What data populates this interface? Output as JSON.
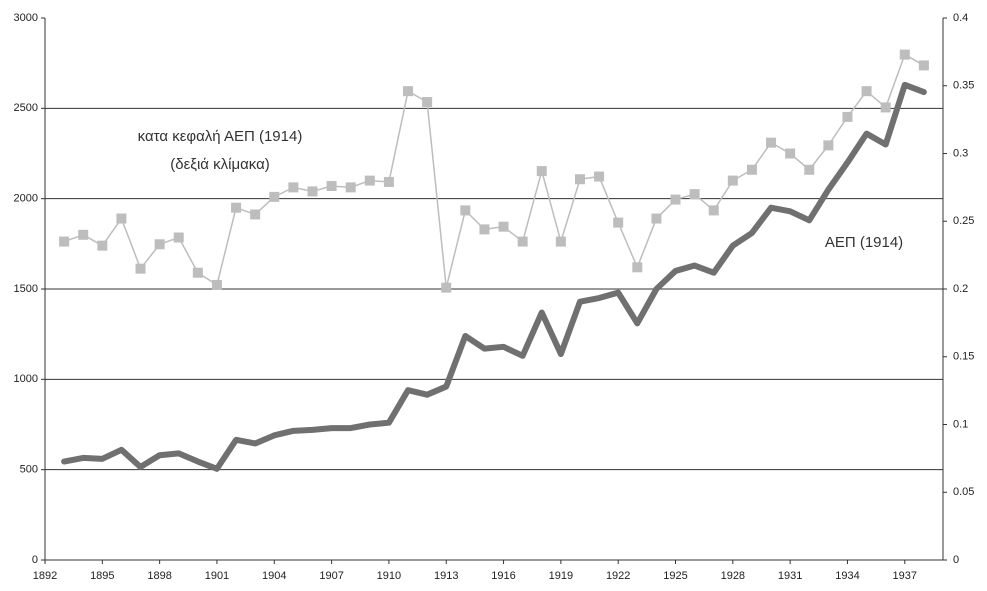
{
  "chart_data": {
    "type": "line",
    "x": [
      1893,
      1894,
      1895,
      1896,
      1897,
      1898,
      1899,
      1900,
      1901,
      1902,
      1903,
      1904,
      1905,
      1906,
      1907,
      1908,
      1909,
      1910,
      1911,
      1912,
      1913,
      1914,
      1915,
      1916,
      1917,
      1918,
      1919,
      1920,
      1921,
      1922,
      1923,
      1924,
      1925,
      1926,
      1927,
      1928,
      1929,
      1930,
      1931,
      1932,
      1933,
      1934,
      1935,
      1936,
      1937,
      1938
    ],
    "series": [
      {
        "name": "ΑΕΠ (1914)",
        "color": "#707070",
        "axis": "y",
        "values": [
          545,
          565,
          560,
          610,
          515,
          580,
          590,
          545,
          505,
          665,
          645,
          690,
          715,
          720,
          730,
          730,
          750,
          760,
          940,
          915,
          960,
          1240,
          1170,
          1180,
          1130,
          1370,
          1140,
          1430,
          1450,
          1480,
          1310,
          1500,
          1600,
          1630,
          1590,
          1740,
          1810,
          1950,
          1930,
          1880,
          2050,
          2200,
          2360,
          2300,
          2630,
          2590
        ]
      },
      {
        "name": "κατα κεφαλή ΑΕΠ (1914)",
        "color": "#bdbdbd",
        "axis": "y2",
        "values": [
          0.235,
          0.24,
          0.232,
          0.252,
          0.215,
          0.233,
          0.238,
          0.212,
          0.203,
          0.26,
          0.255,
          0.268,
          0.275,
          0.272,
          0.276,
          0.275,
          0.28,
          0.279,
          0.346,
          0.338,
          0.201,
          0.258,
          0.244,
          0.246,
          0.235,
          0.287,
          0.235,
          0.281,
          0.283,
          0.249,
          0.216,
          0.252,
          0.266,
          0.27,
          0.258,
          0.28,
          0.288,
          0.308,
          0.3,
          0.288,
          0.306,
          0.327,
          0.346,
          0.334,
          0.373,
          0.365
        ]
      }
    ],
    "annotations": [
      "(δεξιά κλίμακα)"
    ],
    "xlim": [
      1892,
      1939
    ],
    "xticks": [
      1892,
      1895,
      1898,
      1901,
      1904,
      1907,
      1910,
      1913,
      1916,
      1919,
      1922,
      1925,
      1928,
      1931,
      1934,
      1937
    ],
    "ylim": [
      0,
      3000
    ],
    "yticks": [
      0,
      500,
      1000,
      1500,
      2000,
      2500,
      3000
    ],
    "y2lim": [
      0,
      0.4
    ],
    "y2ticks": [
      0,
      0.05,
      0.1,
      0.15,
      0.2,
      0.25,
      0.3,
      0.35,
      0.4
    ],
    "grid": true
  }
}
